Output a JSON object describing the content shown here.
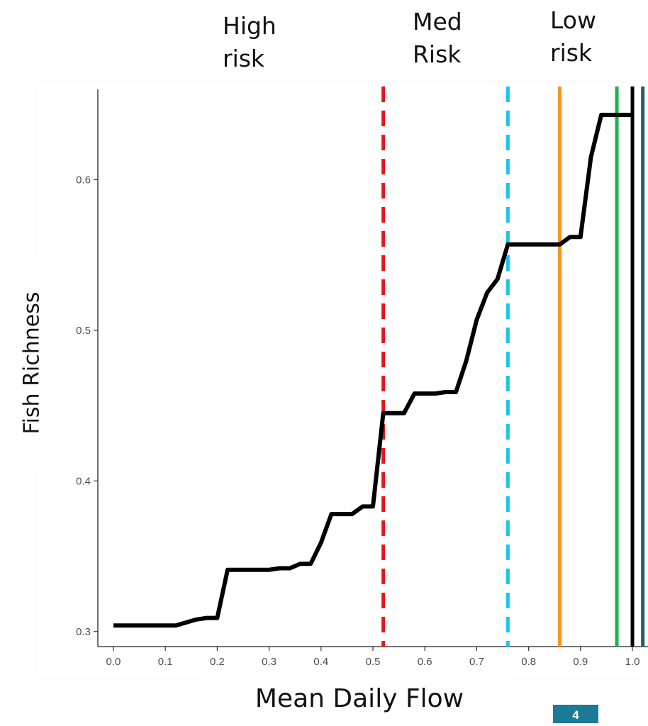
{
  "annotations": {
    "high": "High\nrisk",
    "med": "Med\nRisk",
    "low": "Low\nrisk"
  },
  "page_number": "4",
  "chart_data": {
    "type": "line",
    "title": "",
    "xlabel": "Mean Daily Flow",
    "ylabel": "Fish Richness",
    "xlim": [
      -0.03,
      1.03
    ],
    "ylim": [
      0.29,
      0.66
    ],
    "x_ticks": [
      0.0,
      0.1,
      0.2,
      0.3,
      0.4,
      0.5,
      0.6,
      0.7,
      0.8,
      0.9,
      1.0
    ],
    "x_tick_labels": [
      "0.0",
      "0.1",
      "0.2",
      "0.3",
      "0.4",
      "0.5",
      "0.6",
      "0.7",
      "0.8",
      "0.9",
      "1.0"
    ],
    "y_ticks": [
      0.3,
      0.4,
      0.5,
      0.6
    ],
    "y_tick_labels": [
      "0.3",
      "0.4",
      "0.5",
      "0.6"
    ],
    "grid": false,
    "legend": "none",
    "series": [
      {
        "color": "#000000",
        "x": [
          0.0,
          0.06,
          0.12,
          0.14,
          0.16,
          0.18,
          0.2,
          0.22,
          0.24,
          0.26,
          0.28,
          0.3,
          0.32,
          0.34,
          0.36,
          0.38,
          0.4,
          0.42,
          0.44,
          0.46,
          0.48,
          0.5,
          0.52,
          0.54,
          0.56,
          0.58,
          0.6,
          0.62,
          0.64,
          0.66,
          0.68,
          0.7,
          0.72,
          0.74,
          0.76,
          0.78,
          0.8,
          0.82,
          0.84,
          0.86,
          0.88,
          0.9,
          0.92,
          0.94,
          0.96,
          0.98,
          1.0
        ],
        "y": [
          0.304,
          0.304,
          0.304,
          0.306,
          0.308,
          0.309,
          0.309,
          0.341,
          0.341,
          0.341,
          0.341,
          0.341,
          0.342,
          0.342,
          0.345,
          0.345,
          0.359,
          0.378,
          0.378,
          0.378,
          0.383,
          0.383,
          0.445,
          0.445,
          0.445,
          0.458,
          0.458,
          0.458,
          0.459,
          0.459,
          0.48,
          0.507,
          0.525,
          0.534,
          0.557,
          0.557,
          0.557,
          0.557,
          0.557,
          0.557,
          0.562,
          0.562,
          0.615,
          0.643,
          0.643,
          0.643,
          0.643
        ]
      }
    ],
    "vlines": [
      {
        "x": 0.52,
        "color": "#e8141c",
        "style": "dashed"
      },
      {
        "x": 0.76,
        "color": "#1cc4ee",
        "style": "dashed"
      },
      {
        "x": 0.86,
        "color": "#f7941d",
        "style": "solid"
      },
      {
        "x": 0.97,
        "color": "#1cb34e",
        "style": "solid"
      },
      {
        "x": 1.0,
        "color": "#000000",
        "style": "solid"
      },
      {
        "x": 1.02,
        "color": "#1f5f6e",
        "style": "solid"
      }
    ]
  }
}
